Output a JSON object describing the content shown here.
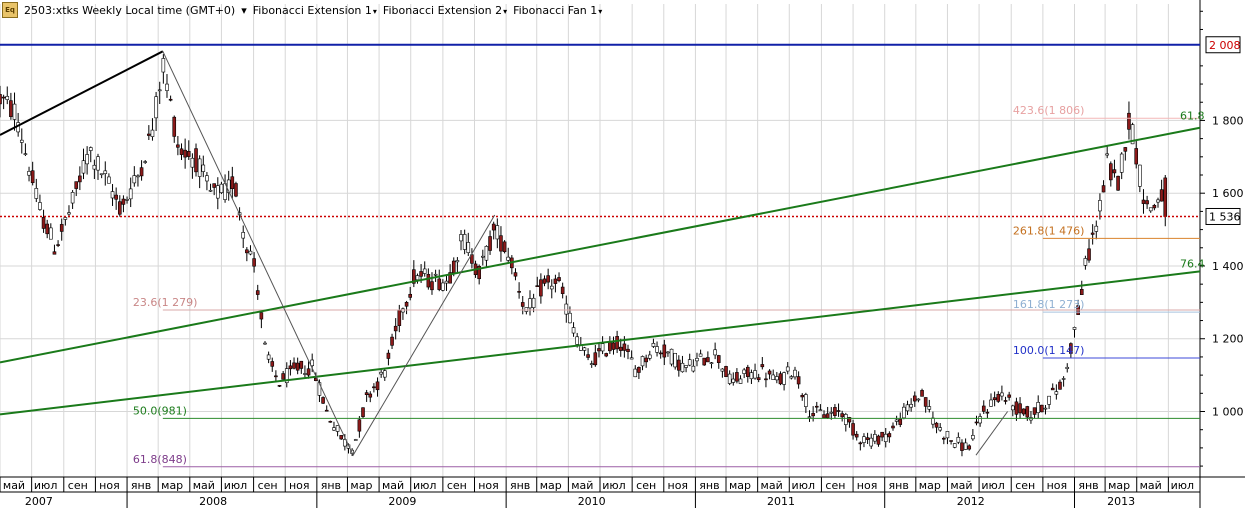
{
  "toolbar": {
    "symbol": "2503:xtks Weekly Local time (GMT+0)",
    "items": [
      "Fibonacci Extension 1",
      "Fibonacci Extension 2",
      "Fibonacci Fan 1"
    ],
    "icon_text": "Eq"
  },
  "chart_data": {
    "type": "candlestick",
    "instrument": "2503:xtks",
    "timeframe": "Weekly",
    "ylim": [
      820,
      2120
    ],
    "y_ticks": [
      1000,
      1200,
      1400,
      1600,
      1800
    ],
    "y_tick_labels": [
      "1 000",
      "1 200",
      "1 400",
      "1 600",
      "1 800"
    ],
    "current_price": 1536,
    "current_price_label": "1 536",
    "high_line": 2008,
    "high_line_label": "2 008",
    "x_range": [
      "2007-05-01",
      "2013-08-31"
    ],
    "month_ticks": [
      {
        "date": "2007-05-01",
        "label": "май"
      },
      {
        "date": "2007-07-01",
        "label": "июл"
      },
      {
        "date": "2007-09-01",
        "label": "сен"
      },
      {
        "date": "2007-11-01",
        "label": "ноя"
      },
      {
        "date": "2008-01-01",
        "label": "янв"
      },
      {
        "date": "2008-03-01",
        "label": "мар"
      },
      {
        "date": "2008-05-01",
        "label": "май"
      },
      {
        "date": "2008-07-01",
        "label": "июл"
      },
      {
        "date": "2008-09-01",
        "label": "сен"
      },
      {
        "date": "2008-11-01",
        "label": "ноя"
      },
      {
        "date": "2009-01-01",
        "label": "янв"
      },
      {
        "date": "2009-03-01",
        "label": "мар"
      },
      {
        "date": "2009-05-01",
        "label": "май"
      },
      {
        "date": "2009-07-01",
        "label": "июл"
      },
      {
        "date": "2009-09-01",
        "label": "сен"
      },
      {
        "date": "2009-11-01",
        "label": "ноя"
      },
      {
        "date": "2010-01-01",
        "label": "янв"
      },
      {
        "date": "2010-03-01",
        "label": "мар"
      },
      {
        "date": "2010-05-01",
        "label": "май"
      },
      {
        "date": "2010-07-01",
        "label": "июл"
      },
      {
        "date": "2010-09-01",
        "label": "сен"
      },
      {
        "date": "2010-11-01",
        "label": "ноя"
      },
      {
        "date": "2011-01-01",
        "label": "янв"
      },
      {
        "date": "2011-03-01",
        "label": "мар"
      },
      {
        "date": "2011-05-01",
        "label": "май"
      },
      {
        "date": "2011-07-01",
        "label": "июл"
      },
      {
        "date": "2011-09-01",
        "label": "сен"
      },
      {
        "date": "2011-11-01",
        "label": "ноя"
      },
      {
        "date": "2012-01-01",
        "label": "янв"
      },
      {
        "date": "2012-03-01",
        "label": "мар"
      },
      {
        "date": "2012-05-01",
        "label": "май"
      },
      {
        "date": "2012-07-01",
        "label": "июл"
      },
      {
        "date": "2012-09-01",
        "label": "сен"
      },
      {
        "date": "2012-11-01",
        "label": "ноя"
      },
      {
        "date": "2013-01-01",
        "label": "янв"
      },
      {
        "date": "2013-03-01",
        "label": "мар"
      },
      {
        "date": "2013-05-01",
        "label": "май"
      },
      {
        "date": "2013-07-01",
        "label": "июл"
      }
    ],
    "year_labels": [
      {
        "date": "2007-07-15",
        "label": "2007"
      },
      {
        "date": "2008-06-15",
        "label": "2008"
      },
      {
        "date": "2009-06-15",
        "label": "2009"
      },
      {
        "date": "2010-06-15",
        "label": "2010"
      },
      {
        "date": "2011-06-15",
        "label": "2011"
      },
      {
        "date": "2012-06-15",
        "label": "2012"
      },
      {
        "date": "2013-04-01",
        "label": "2013"
      }
    ],
    "year_boundaries": [
      "2008-01-01",
      "2009-01-01",
      "2010-01-01",
      "2011-01-01",
      "2012-01-01",
      "2013-01-01"
    ],
    "anchors": [
      {
        "date": "2007-05-01",
        "price": 1860
      },
      {
        "date": "2007-06-01",
        "price": 1820
      },
      {
        "date": "2007-07-15",
        "price": 1560
      },
      {
        "date": "2007-08-15",
        "price": 1450
      },
      {
        "date": "2007-09-15",
        "price": 1560
      },
      {
        "date": "2007-10-20",
        "price": 1720
      },
      {
        "date": "2007-11-20",
        "price": 1640
      },
      {
        "date": "2007-12-20",
        "price": 1560
      },
      {
        "date": "2008-01-20",
        "price": 1640
      },
      {
        "date": "2008-02-20",
        "price": 1780
      },
      {
        "date": "2008-03-10",
        "price": 1960
      },
      {
        "date": "2008-04-10",
        "price": 1720
      },
      {
        "date": "2008-05-10",
        "price": 1700
      },
      {
        "date": "2008-06-10",
        "price": 1600
      },
      {
        "date": "2008-07-10",
        "price": 1600
      },
      {
        "date": "2008-07-25",
        "price": 1640
      },
      {
        "date": "2008-08-15",
        "price": 1480
      },
      {
        "date": "2008-09-05",
        "price": 1390
      },
      {
        "date": "2008-09-25",
        "price": 1150
      },
      {
        "date": "2008-10-20",
        "price": 1080
      },
      {
        "date": "2008-11-25",
        "price": 1120
      },
      {
        "date": "2008-12-25",
        "price": 1120
      },
      {
        "date": "2009-01-20",
        "price": 1000
      },
      {
        "date": "2009-02-20",
        "price": 920
      },
      {
        "date": "2009-03-12",
        "price": 900
      },
      {
        "date": "2009-04-10",
        "price": 1050
      },
      {
        "date": "2009-05-10",
        "price": 1100
      },
      {
        "date": "2009-06-10",
        "price": 1260
      },
      {
        "date": "2009-07-10",
        "price": 1380
      },
      {
        "date": "2009-08-10",
        "price": 1360
      },
      {
        "date": "2009-09-10",
        "price": 1360
      },
      {
        "date": "2009-10-10",
        "price": 1480
      },
      {
        "date": "2009-11-10",
        "price": 1380
      },
      {
        "date": "2009-12-10",
        "price": 1500
      },
      {
        "date": "2010-01-10",
        "price": 1420
      },
      {
        "date": "2010-02-10",
        "price": 1270
      },
      {
        "date": "2010-03-10",
        "price": 1340
      },
      {
        "date": "2010-04-10",
        "price": 1360
      },
      {
        "date": "2010-05-10",
        "price": 1230
      },
      {
        "date": "2010-06-10",
        "price": 1130
      },
      {
        "date": "2010-07-10",
        "price": 1170
      },
      {
        "date": "2010-08-10",
        "price": 1190
      },
      {
        "date": "2010-09-10",
        "price": 1110
      },
      {
        "date": "2010-10-10",
        "price": 1180
      },
      {
        "date": "2010-11-10",
        "price": 1160
      },
      {
        "date": "2010-12-10",
        "price": 1120
      },
      {
        "date": "2011-01-10",
        "price": 1140
      },
      {
        "date": "2011-02-10",
        "price": 1160
      },
      {
        "date": "2011-03-10",
        "price": 1080
      },
      {
        "date": "2011-04-10",
        "price": 1100
      },
      {
        "date": "2011-05-10",
        "price": 1110
      },
      {
        "date": "2011-06-10",
        "price": 1080
      },
      {
        "date": "2011-07-10",
        "price": 1120
      },
      {
        "date": "2011-08-10",
        "price": 1000
      },
      {
        "date": "2011-09-10",
        "price": 990
      },
      {
        "date": "2011-10-10",
        "price": 1000
      },
      {
        "date": "2011-11-10",
        "price": 930
      },
      {
        "date": "2011-12-10",
        "price": 920
      },
      {
        "date": "2012-01-10",
        "price": 940
      },
      {
        "date": "2012-02-10",
        "price": 1000
      },
      {
        "date": "2012-03-10",
        "price": 1050
      },
      {
        "date": "2012-04-10",
        "price": 960
      },
      {
        "date": "2012-05-10",
        "price": 920
      },
      {
        "date": "2012-06-10",
        "price": 900
      },
      {
        "date": "2012-07-10",
        "price": 1000
      },
      {
        "date": "2012-08-10",
        "price": 1050
      },
      {
        "date": "2012-09-10",
        "price": 1010
      },
      {
        "date": "2012-10-10",
        "price": 990
      },
      {
        "date": "2012-11-10",
        "price": 1030
      },
      {
        "date": "2012-12-10",
        "price": 1080
      },
      {
        "date": "2013-01-05",
        "price": 1250
      },
      {
        "date": "2013-01-25",
        "price": 1420
      },
      {
        "date": "2013-02-15",
        "price": 1530
      },
      {
        "date": "2013-03-05",
        "price": 1680
      },
      {
        "date": "2013-03-25",
        "price": 1620
      },
      {
        "date": "2013-04-15",
        "price": 1800
      },
      {
        "date": "2013-04-25",
        "price": 1760
      },
      {
        "date": "2013-05-10",
        "price": 1620
      },
      {
        "date": "2013-05-25",
        "price": 1550
      },
      {
        "date": "2013-06-10",
        "price": 1580
      },
      {
        "date": "2013-06-25",
        "price": 1620
      },
      {
        "date": "2013-07-01",
        "price": 1536
      }
    ],
    "horizontal_levels": [
      {
        "price": 1806,
        "label": "423.6(1 806)",
        "color": "#f4b7b7",
        "start": "2012-11-01",
        "label_color": "#e7a1a1"
      },
      {
        "price": 1476,
        "label": "261.8(1 476)",
        "color": "#d9822b",
        "start": "2012-11-01",
        "label_color": "#c4701f"
      },
      {
        "price": 1279,
        "label": "23.6(1 279)",
        "color": "#d9a8a8",
        "start": "2008-03-10",
        "label_color": "#c98787"
      },
      {
        "price": 1273,
        "label": "161.8(1 273)",
        "color": "#a9c4df",
        "start": "2012-11-01",
        "label_color": "#8fb0d2"
      },
      {
        "price": 1147,
        "label": "100.0(1 147)",
        "color": "#3c49d8",
        "start": "2012-11-01",
        "label_color": "#2131c8"
      },
      {
        "price": 981,
        "label": "50.0(981)",
        "color": "#2d8c2d",
        "start": "2008-03-10",
        "label_color": "#1e7d1e"
      },
      {
        "price": 848,
        "label": "61.8(848)",
        "color": "#9b5fa5",
        "start": "2008-03-10",
        "label_color": "#7d3c8a"
      }
    ],
    "fan_lines": [
      {
        "label": "61.8",
        "from": {
          "date": "2007-05-01",
          "price": 1135
        },
        "to": {
          "date": "2013-08-31",
          "price": 1780
        }
      },
      {
        "label": "76.4",
        "from": {
          "date": "2007-05-01",
          "price": 992
        },
        "to": {
          "date": "2013-08-31",
          "price": 1385
        }
      }
    ],
    "black_trend": {
      "from": {
        "date": "2007-05-01",
        "price": 1760
      },
      "to": {
        "date": "2008-03-10",
        "price": 1990
      }
    },
    "zigzag": [
      {
        "date": "2008-03-10",
        "price": 1990
      },
      {
        "date": "2009-03-12",
        "price": 880
      },
      {
        "date": "2009-12-10",
        "price": 1540
      }
    ],
    "zigzag_2": [
      {
        "date": "2012-06-25",
        "price": 880
      },
      {
        "date": "2012-08-25",
        "price": 1000
      }
    ],
    "colors": {
      "bull": "#ffffff",
      "bear": "#8b1a1a",
      "wick": "#000000",
      "grid": "#d7d7d7",
      "blue_line": "#1020a8",
      "red_dotted": "#cc0000",
      "fan": "#1a7a1a",
      "axis_bg": "#ffffff"
    }
  }
}
